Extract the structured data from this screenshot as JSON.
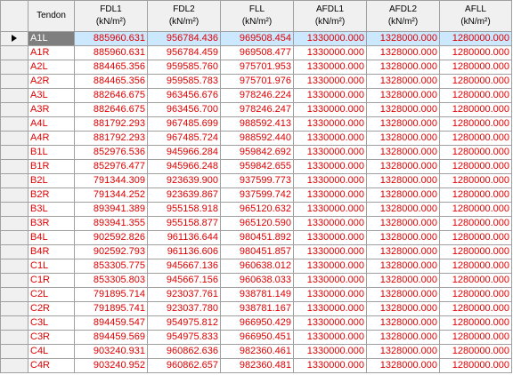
{
  "columns": [
    {
      "name": "Tendon",
      "unit": ""
    },
    {
      "name": "FDL1",
      "unit": "(kN/m²)"
    },
    {
      "name": "FDL2",
      "unit": "(kN/m²)"
    },
    {
      "name": "FLL",
      "unit": "(kN/m²)"
    },
    {
      "name": "AFDL1",
      "unit": "(kN/m²)"
    },
    {
      "name": "AFDL2",
      "unit": "(kN/m²)"
    },
    {
      "name": "AFLL",
      "unit": "(kN/m²)"
    }
  ],
  "current_row_icon": "row-pointer-icon",
  "colors": {
    "value_text": "#e00000",
    "selected_cell": "#cce8ff",
    "current_tendon_bg": "#7f7f7f",
    "header_bg": "#f0f0f0"
  },
  "rows": [
    [
      "A1L",
      "885960.631",
      "956784.436",
      "969508.454",
      "1330000.000",
      "1328000.000",
      "1280000.000"
    ],
    [
      "A1R",
      "885960.631",
      "956784.459",
      "969508.477",
      "1330000.000",
      "1328000.000",
      "1280000.000"
    ],
    [
      "A2L",
      "884465.356",
      "959585.760",
      "975701.953",
      "1330000.000",
      "1328000.000",
      "1280000.000"
    ],
    [
      "A2R",
      "884465.356",
      "959585.783",
      "975701.976",
      "1330000.000",
      "1328000.000",
      "1280000.000"
    ],
    [
      "A3L",
      "882646.675",
      "963456.676",
      "978246.224",
      "1330000.000",
      "1328000.000",
      "1280000.000"
    ],
    [
      "A3R",
      "882646.675",
      "963456.700",
      "978246.247",
      "1330000.000",
      "1328000.000",
      "1280000.000"
    ],
    [
      "A4L",
      "881792.293",
      "967485.699",
      "988592.413",
      "1330000.000",
      "1328000.000",
      "1280000.000"
    ],
    [
      "A4R",
      "881792.293",
      "967485.724",
      "988592.440",
      "1330000.000",
      "1328000.000",
      "1280000.000"
    ],
    [
      "B1L",
      "852976.536",
      "945966.284",
      "959842.692",
      "1330000.000",
      "1328000.000",
      "1280000.000"
    ],
    [
      "B1R",
      "852976.477",
      "945966.248",
      "959842.655",
      "1330000.000",
      "1328000.000",
      "1280000.000"
    ],
    [
      "B2L",
      "791344.309",
      "923639.900",
      "937599.773",
      "1330000.000",
      "1328000.000",
      "1280000.000"
    ],
    [
      "B2R",
      "791344.252",
      "923639.867",
      "937599.742",
      "1330000.000",
      "1328000.000",
      "1280000.000"
    ],
    [
      "B3L",
      "893941.389",
      "955158.918",
      "965120.632",
      "1330000.000",
      "1328000.000",
      "1280000.000"
    ],
    [
      "B3R",
      "893941.355",
      "955158.877",
      "965120.590",
      "1330000.000",
      "1328000.000",
      "1280000.000"
    ],
    [
      "B4L",
      "902592.826",
      "961136.644",
      "980451.892",
      "1330000.000",
      "1328000.000",
      "1280000.000"
    ],
    [
      "B4R",
      "902592.793",
      "961136.606",
      "980451.857",
      "1330000.000",
      "1328000.000",
      "1280000.000"
    ],
    [
      "C1L",
      "853305.775",
      "945667.136",
      "960638.012",
      "1330000.000",
      "1328000.000",
      "1280000.000"
    ],
    [
      "C1R",
      "853305.803",
      "945667.156",
      "960638.033",
      "1330000.000",
      "1328000.000",
      "1280000.000"
    ],
    [
      "C2L",
      "791895.714",
      "923037.761",
      "938781.149",
      "1330000.000",
      "1328000.000",
      "1280000.000"
    ],
    [
      "C2R",
      "791895.741",
      "923037.780",
      "938781.167",
      "1330000.000",
      "1328000.000",
      "1280000.000"
    ],
    [
      "C3L",
      "894459.547",
      "954975.812",
      "966950.429",
      "1330000.000",
      "1328000.000",
      "1280000.000"
    ],
    [
      "C3R",
      "894459.569",
      "954975.833",
      "966950.451",
      "1330000.000",
      "1328000.000",
      "1280000.000"
    ],
    [
      "C4L",
      "903240.931",
      "960862.636",
      "982360.461",
      "1330000.000",
      "1328000.000",
      "1280000.000"
    ],
    [
      "C4R",
      "903240.952",
      "960862.657",
      "982360.481",
      "1330000.000",
      "1328000.000",
      "1280000.000"
    ]
  ]
}
